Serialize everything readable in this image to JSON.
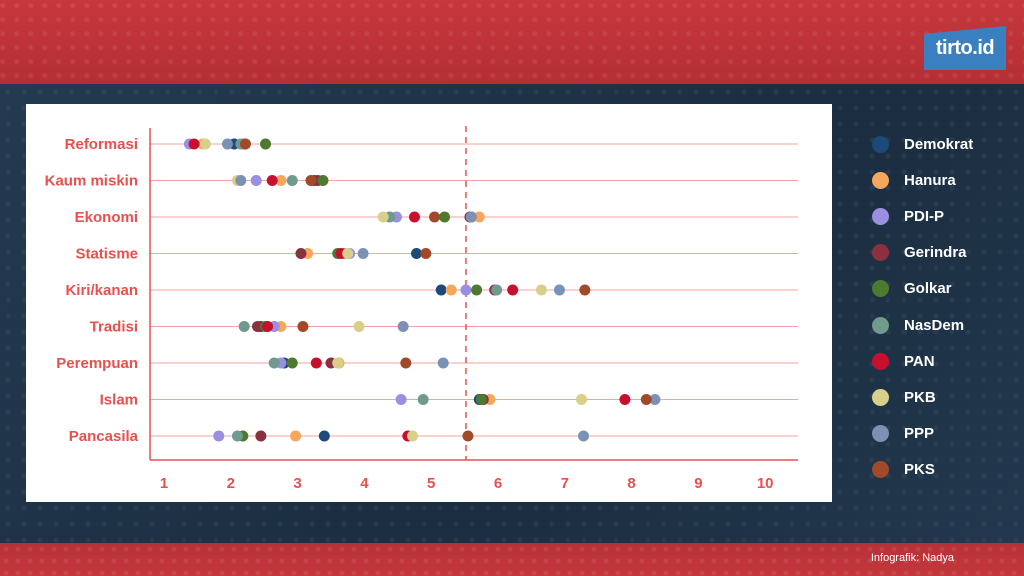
{
  "brand": {
    "logo_text": "tirto.id"
  },
  "credit": "Infografik: Nadya",
  "colors": {
    "background": "#1f3247",
    "band": "#c7373c",
    "panel": "#ffffff",
    "axis": "#e8504e",
    "label": "#e8504e"
  },
  "chart_data": {
    "type": "scatter",
    "title": "",
    "xlabel": "",
    "ylabel": "",
    "xlim": [
      1,
      10.4
    ],
    "x_ticks": [
      1,
      2,
      3,
      4,
      5,
      6,
      7,
      8,
      9,
      10
    ],
    "categories": [
      "Reformasi",
      "Kaum miskin",
      "Ekonomi",
      "Statisme",
      "Kiri/kanan",
      "Tradisi",
      "Perempuan",
      "Islam",
      "Pancasila"
    ],
    "reference_line": {
      "x": 5.52,
      "style": "dashed"
    },
    "legend_position": "right",
    "series": [
      {
        "name": "Demokrat",
        "color": "#1d4a7a",
        "values": [
          2.05,
          3.25,
          5.6,
          4.78,
          5.15,
          2.45,
          2.8,
          5.72,
          3.4
        ]
      },
      {
        "name": "Hanura",
        "color": "#f7a75c",
        "values": [
          1.58,
          2.75,
          5.72,
          3.15,
          5.3,
          2.75,
          3.62,
          5.88,
          2.97
        ]
      },
      {
        "name": "PDI-P",
        "color": "#9a8fe0",
        "values": [
          1.38,
          2.38,
          4.48,
          3.78,
          5.52,
          2.65,
          2.75,
          4.55,
          1.82
        ]
      },
      {
        "name": "Gerindra",
        "color": "#8c3040",
        "values": [
          2.2,
          3.3,
          5.58,
          3.05,
          5.95,
          2.4,
          3.5,
          5.78,
          2.45
        ]
      },
      {
        "name": "Golkar",
        "color": "#4e7a30",
        "values": [
          2.52,
          3.38,
          5.2,
          3.6,
          5.68,
          2.52,
          2.92,
          5.75,
          2.18
        ]
      },
      {
        "name": "NasDem",
        "color": "#6f9a8e",
        "values": [
          2.15,
          2.92,
          4.38,
          3.7,
          5.98,
          2.2,
          2.65,
          4.88,
          2.1
        ]
      },
      {
        "name": "PAN",
        "color": "#c8102e",
        "values": [
          1.45,
          2.62,
          4.75,
          3.65,
          6.22,
          2.55,
          3.28,
          7.9,
          4.65
        ]
      },
      {
        "name": "PKB",
        "color": "#d8cf8a",
        "values": [
          1.62,
          2.1,
          4.28,
          3.75,
          6.65,
          3.92,
          3.6,
          7.25,
          4.72
        ]
      },
      {
        "name": "PPP",
        "color": "#7c92b5",
        "values": [
          1.95,
          2.15,
          5.6,
          3.98,
          6.92,
          4.58,
          5.18,
          8.35,
          7.28
        ]
      },
      {
        "name": "PKS",
        "color": "#a04a2a",
        "values": [
          2.22,
          3.2,
          5.05,
          4.92,
          7.3,
          3.08,
          4.62,
          8.22,
          5.55
        ]
      }
    ]
  }
}
